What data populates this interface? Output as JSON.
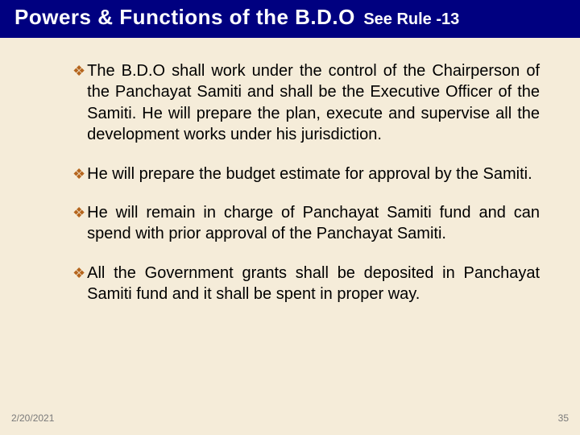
{
  "colors": {
    "background": "#f5ecd9",
    "title_bar_bg": "#000080",
    "title_text": "#ffffff",
    "body_text": "#000000",
    "bullet_marker": "#b5651d",
    "footer_text": "#7a7a7a"
  },
  "typography": {
    "title_main_fontsize": 26,
    "title_sub_fontsize": 20,
    "body_fontsize": 20,
    "footer_fontsize": 12,
    "font_family": "Arial"
  },
  "title": {
    "main": "Powers & Functions of the B.D.O",
    "sub": "See Rule -13"
  },
  "bullets": [
    "The B.D.O shall work under the control of the Chairperson of the Panchayat Samiti and shall be the Executive Officer of the Samiti. He will prepare the plan, execute and supervise all the development works under his jurisdiction.",
    "He will prepare the budget estimate for approval by the Samiti.",
    "He will remain in charge of Panchayat Samiti fund and can spend with prior approval of the Panchayat Samiti.",
    "All the Government grants shall be deposited in Panchayat Samiti fund and it shall be spent in proper way."
  ],
  "bullet_glyph": "❖",
  "footer": {
    "date": "2/20/2021",
    "page": "35"
  }
}
